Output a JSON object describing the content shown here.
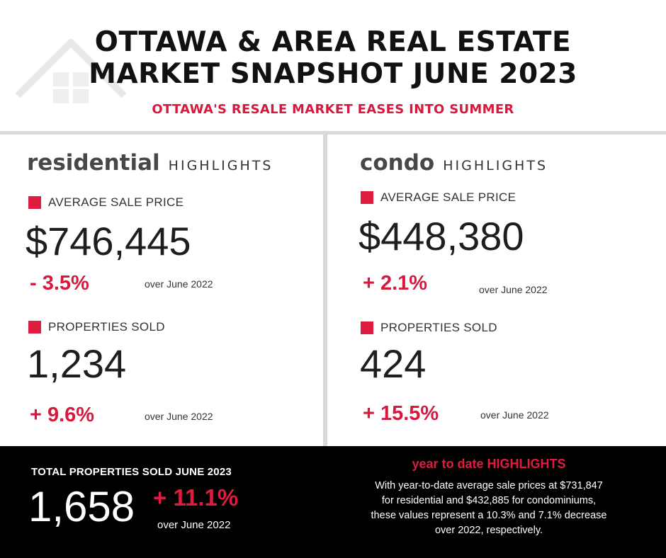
{
  "header": {
    "title_line1": "OTTAWA & AREA REAL ESTATE",
    "title_line2": "MARKET SNAPSHOT JUNE 2023",
    "subtitle": "OTTAWA'S RESALE MARKET EASES INTO SUMMER"
  },
  "residential": {
    "heading_big": "residential",
    "heading_small": "HIGHLIGHTS",
    "avg_price_label": "AVERAGE SALE PRICE",
    "avg_price": "$746,445",
    "avg_price_change": "- 3.5%",
    "avg_price_compare": "over June 2022",
    "sold_label": "PROPERTIES SOLD",
    "sold": "1,234",
    "sold_change": "+ 9.6%",
    "sold_compare": "over June 2022"
  },
  "condo": {
    "heading_big": "condo",
    "heading_small": "HIGHLIGHTS",
    "avg_price_label": "AVERAGE SALE PRICE",
    "avg_price": "$448,380",
    "avg_price_change": "+  2.1%",
    "avg_price_compare": "over June 2022",
    "sold_label": "PROPERTIES SOLD",
    "sold": "424",
    "sold_change": "+ 15.5%",
    "sold_compare": "over June 2022"
  },
  "total": {
    "label": "TOTAL PROPERTIES SOLD JUNE 2023",
    "value": "1,658",
    "change": "+ 11.1%",
    "compare": "over June 2022"
  },
  "ytd": {
    "title": "year to date HIGHLIGHTS",
    "line1": "With year-to-date average sale prices at $731,847",
    "line2": "for residential and $432,885 for condominiums,",
    "line3": "these values represent a 10.3% and 7.1% decrease",
    "line4": "over 2022, respectively."
  },
  "colors": {
    "accent": "#e01b40",
    "footer_bg": "#000000",
    "divider": "#d9d9d9"
  }
}
